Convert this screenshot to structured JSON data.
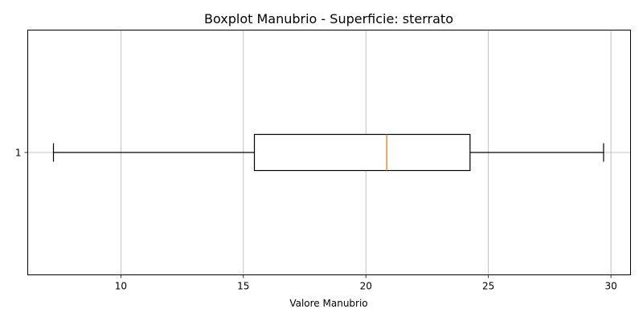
{
  "chart_data": {
    "type": "boxplot",
    "title": "Boxplot Manubrio - Superficie: sterrato",
    "xlabel": "Valore Manubrio",
    "ylabel": "",
    "orientation": "horizontal",
    "xlim": [
      6.2,
      30.8
    ],
    "xticks": [
      10,
      15,
      20,
      25,
      30
    ],
    "grid": true,
    "categories": [
      "1"
    ],
    "boxes": [
      {
        "label": "1",
        "whisker_low": 7.25,
        "q1": 15.45,
        "median": 20.85,
        "q3": 24.25,
        "whisker_high": 29.7
      }
    ],
    "colors": {
      "box": "#000000",
      "median": "#ff7f0e",
      "grid": "#b0b0b0"
    }
  }
}
